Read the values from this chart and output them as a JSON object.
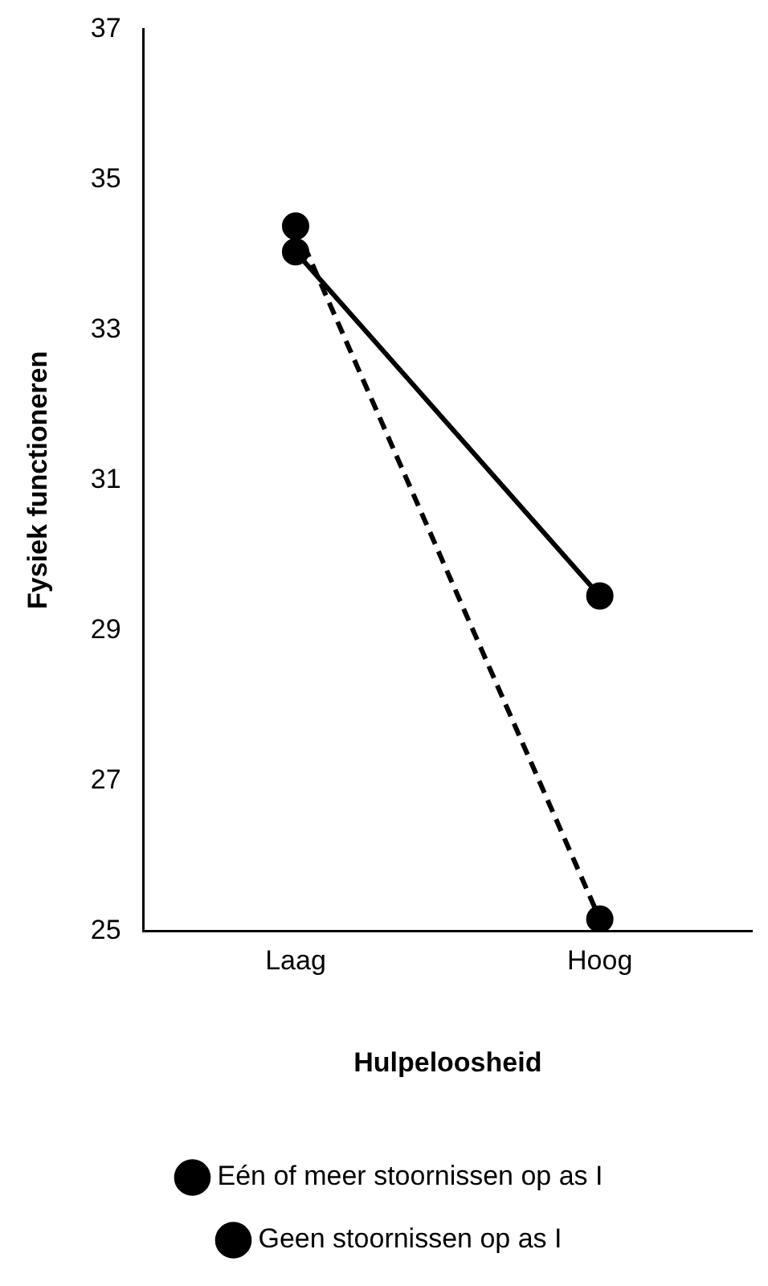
{
  "chart_data": {
    "type": "line",
    "xlabel": "Hulpeloosheid",
    "ylabel": "Fysiek functioneren",
    "categories": [
      "Laag",
      "Hoog"
    ],
    "series": [
      {
        "name": "Eén of meer stoornissen op as I",
        "color": "#000000",
        "values": [
          34.04,
          29.46
        ],
        "line_style": "solid"
      },
      {
        "name": "Geen stoornissen op as I",
        "color": "#000000",
        "values": [
          34.38,
          25.16
        ],
        "line_style": "dashed"
      }
    ],
    "ylim": [
      25,
      37
    ],
    "yticks": [
      25,
      27,
      29,
      31,
      33,
      35,
      37
    ],
    "grid": false,
    "legend": "bottom",
    "marker": "circle"
  }
}
